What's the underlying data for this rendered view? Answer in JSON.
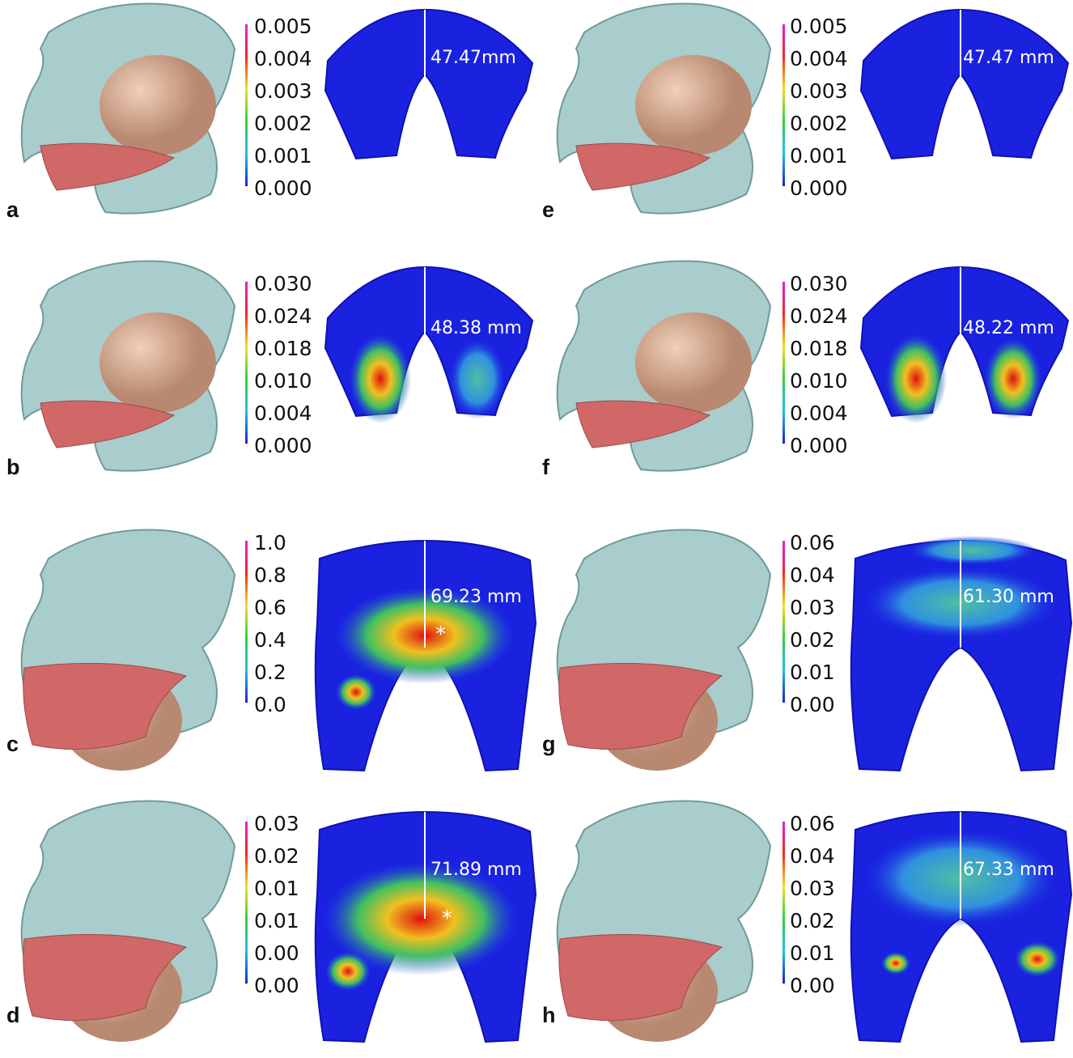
{
  "panels": [
    {
      "label": "a",
      "scale": [
        "0.005",
        "0.004",
        "0.003",
        "0.002",
        "0.001",
        "0.000"
      ],
      "measure": "47.47mm"
    },
    {
      "label": "b",
      "scale": [
        "0.030",
        "0.024",
        "0.018",
        "0.010",
        "0.004",
        "0.000"
      ],
      "measure": "48.38 mm"
    },
    {
      "label": "c",
      "scale": [
        "1.0",
        "0.8",
        "0.6",
        "0.4",
        "0.2",
        "0.0"
      ],
      "measure": "69.23 mm",
      "marker": "*"
    },
    {
      "label": "d",
      "scale": [
        "0.03",
        "0.02",
        "0.01",
        "0.01",
        "0.00",
        "0.00"
      ],
      "measure": "71.89 mm",
      "marker": "*"
    },
    {
      "label": "e",
      "scale": [
        "0.005",
        "0.004",
        "0.003",
        "0.002",
        "0.001",
        "0.000"
      ],
      "measure": "47.47 mm"
    },
    {
      "label": "f",
      "scale": [
        "0.030",
        "0.024",
        "0.018",
        "0.010",
        "0.004",
        "0.000"
      ],
      "measure": "48.22 mm"
    },
    {
      "label": "g",
      "scale": [
        "0.06",
        "0.04",
        "0.03",
        "0.02",
        "0.01",
        "0.00"
      ],
      "measure": "61.30 mm"
    },
    {
      "label": "h",
      "scale": [
        "0.06",
        "0.04",
        "0.03",
        "0.02",
        "0.01",
        "0.00"
      ],
      "measure": "67.33 mm"
    }
  ]
}
